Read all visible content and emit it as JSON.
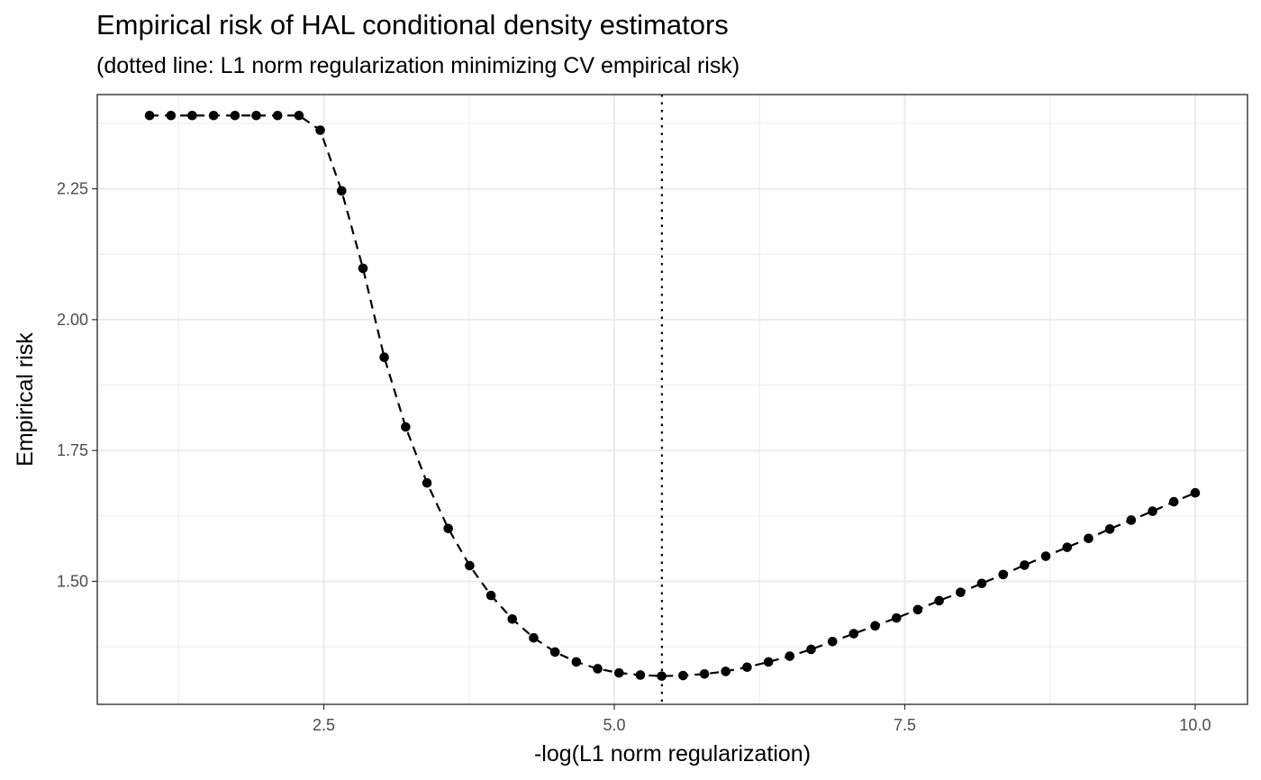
{
  "chart_data": {
    "type": "line",
    "title": "Empirical risk of HAL conditional density estimators",
    "subtitle": "(dotted line: L1 norm regularization minimizing CV empirical risk)",
    "xlabel": "-log(L1 norm regularization)",
    "ylabel": "Empirical risk",
    "xlim": [
      0.55,
      10.45
    ],
    "ylim": [
      1.265,
      2.43
    ],
    "x_ticks": [
      2.5,
      5.0,
      7.5,
      10.0
    ],
    "x_tick_labels": [
      "2.5",
      "5.0",
      "7.5",
      "10.0"
    ],
    "y_ticks": [
      1.5,
      1.75,
      2.0,
      2.25
    ],
    "y_tick_labels": [
      "1.50",
      "1.75",
      "2.00",
      "2.25"
    ],
    "grid": true,
    "vline_x": 5.41,
    "series": [
      {
        "line_style": "dashed",
        "x": [
          1.0,
          1.184,
          1.367,
          1.551,
          1.735,
          1.918,
          2.102,
          2.286,
          2.469,
          2.653,
          2.837,
          3.02,
          3.204,
          3.388,
          3.571,
          3.755,
          3.939,
          4.122,
          4.306,
          4.49,
          4.673,
          4.857,
          5.041,
          5.224,
          5.408,
          5.592,
          5.776,
          5.959,
          6.143,
          6.327,
          6.51,
          6.694,
          6.878,
          7.061,
          7.245,
          7.429,
          7.612,
          7.796,
          7.98,
          8.163,
          8.347,
          8.531,
          8.714,
          8.898,
          9.082,
          9.265,
          9.449,
          9.633,
          9.816,
          10.0
        ],
        "y": [
          2.39,
          2.39,
          2.39,
          2.39,
          2.39,
          2.39,
          2.39,
          2.39,
          2.362,
          2.246,
          2.098,
          1.928,
          1.795,
          1.688,
          1.601,
          1.53,
          1.473,
          1.428,
          1.392,
          1.365,
          1.346,
          1.333,
          1.325,
          1.321,
          1.319,
          1.32,
          1.323,
          1.328,
          1.336,
          1.346,
          1.357,
          1.37,
          1.385,
          1.4,
          1.415,
          1.43,
          1.446,
          1.463,
          1.479,
          1.496,
          1.513,
          1.531,
          1.548,
          1.565,
          1.582,
          1.6,
          1.617,
          1.634,
          1.652,
          1.669
        ]
      }
    ]
  }
}
